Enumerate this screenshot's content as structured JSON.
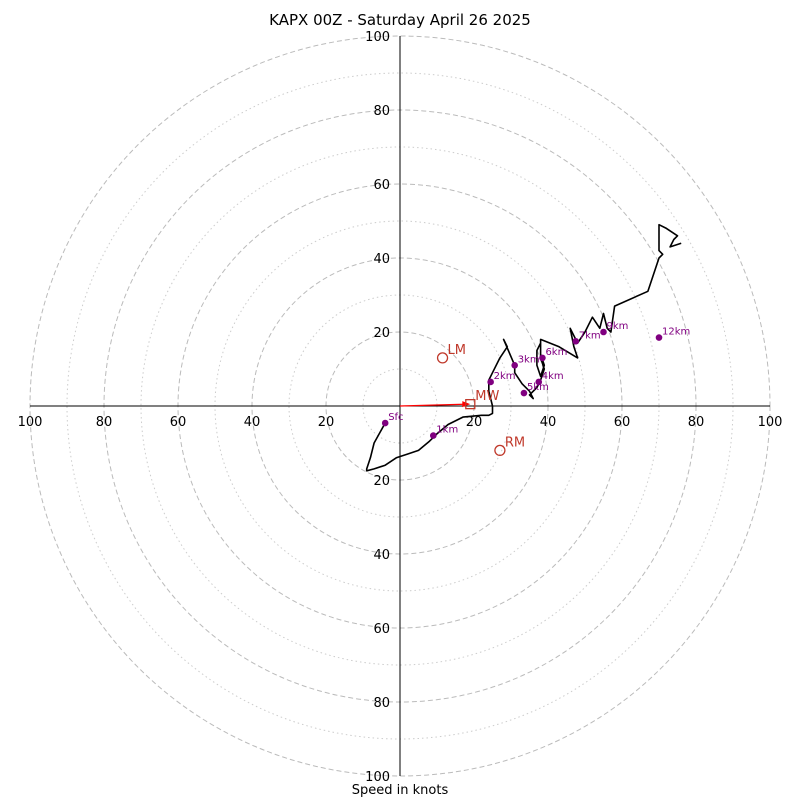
{
  "chart_data": {
    "type": "scatter",
    "title": "KAPX 00Z - Saturday April 26 2025",
    "xlabel": "Speed in knots",
    "ylabel": "",
    "grid": true,
    "rings_major": [
      20,
      40,
      60,
      80,
      100
    ],
    "rings_minor": [
      10,
      30,
      50,
      70,
      90
    ],
    "axis_ticks": [
      "100",
      "80",
      "60",
      "40",
      "20",
      "20",
      "40",
      "60",
      "80",
      "100"
    ],
    "range": [
      -100,
      100
    ],
    "hodograph": [
      [
        -4,
        -4.6
      ],
      [
        -7,
        -10
      ],
      [
        -8,
        -14
      ],
      [
        -9,
        -17
      ],
      [
        -9,
        -17.5
      ],
      [
        -7,
        -17
      ],
      [
        -4,
        -16
      ],
      [
        -1,
        -14
      ],
      [
        2,
        -13
      ],
      [
        5,
        -12
      ],
      [
        8,
        -9.5
      ],
      [
        10,
        -7.5
      ],
      [
        13,
        -5
      ],
      [
        17,
        -3
      ],
      [
        22,
        -2.5
      ],
      [
        24,
        -2.5
      ],
      [
        25,
        -2
      ],
      [
        25,
        0
      ],
      [
        24,
        4
      ],
      [
        24,
        7
      ],
      [
        25,
        9
      ],
      [
        27,
        13
      ],
      [
        29,
        16
      ],
      [
        28,
        18
      ],
      [
        31,
        11
      ],
      [
        31,
        9
      ],
      [
        33,
        6
      ],
      [
        35,
        4
      ],
      [
        36,
        2
      ],
      [
        35,
        3
      ],
      [
        37,
        5
      ],
      [
        38,
        7
      ],
      [
        39,
        10
      ],
      [
        38,
        13
      ],
      [
        38,
        17
      ],
      [
        37,
        15
      ],
      [
        37,
        11
      ],
      [
        38,
        8
      ],
      [
        39,
        11
      ],
      [
        38,
        14
      ],
      [
        38,
        18
      ],
      [
        43,
        16
      ],
      [
        48,
        13
      ],
      [
        47,
        16
      ],
      [
        46,
        21
      ],
      [
        48,
        17
      ],
      [
        50,
        20
      ],
      [
        52,
        24
      ],
      [
        54,
        21
      ],
      [
        55,
        25
      ],
      [
        56,
        21
      ],
      [
        57,
        20
      ],
      [
        58,
        27
      ],
      [
        67,
        31
      ],
      [
        70,
        40
      ],
      [
        71,
        41
      ],
      [
        70,
        42
      ],
      [
        70,
        49
      ],
      [
        72,
        48
      ],
      [
        75,
        46
      ],
      [
        74,
        45
      ],
      [
        73,
        43
      ],
      [
        76,
        44
      ]
    ],
    "height_markers": [
      {
        "label": "Sfc",
        "x": -4,
        "y": -4.6
      },
      {
        "label": "1km",
        "x": 9,
        "y": -8
      },
      {
        "label": "2km",
        "x": 24.5,
        "y": 6.5
      },
      {
        "label": "3km",
        "x": 31,
        "y": 11
      },
      {
        "label": "4km",
        "x": 37.5,
        "y": 6.5
      },
      {
        "label": "5km",
        "x": 33.5,
        "y": 3.5
      },
      {
        "label": "6km",
        "x": 38.5,
        "y": 13
      },
      {
        "label": "7km",
        "x": 47.5,
        "y": 17.5
      },
      {
        "label": "9km",
        "x": 55,
        "y": 20
      },
      {
        "label": "12km",
        "x": 70,
        "y": 18.5
      }
    ],
    "motion_markers": [
      {
        "label": "LM",
        "x": 11.5,
        "y": 13,
        "shape": "circle"
      },
      {
        "label": "RM",
        "x": 27,
        "y": -12,
        "shape": "circle"
      },
      {
        "label": "MW",
        "x": 19,
        "y": 0.5,
        "shape": "square"
      }
    ],
    "colors": {
      "trace": "#000000",
      "height_markers": "#800080",
      "motion": "#c0392b",
      "grid": "#bbbbbb",
      "axes": "#000000"
    }
  }
}
